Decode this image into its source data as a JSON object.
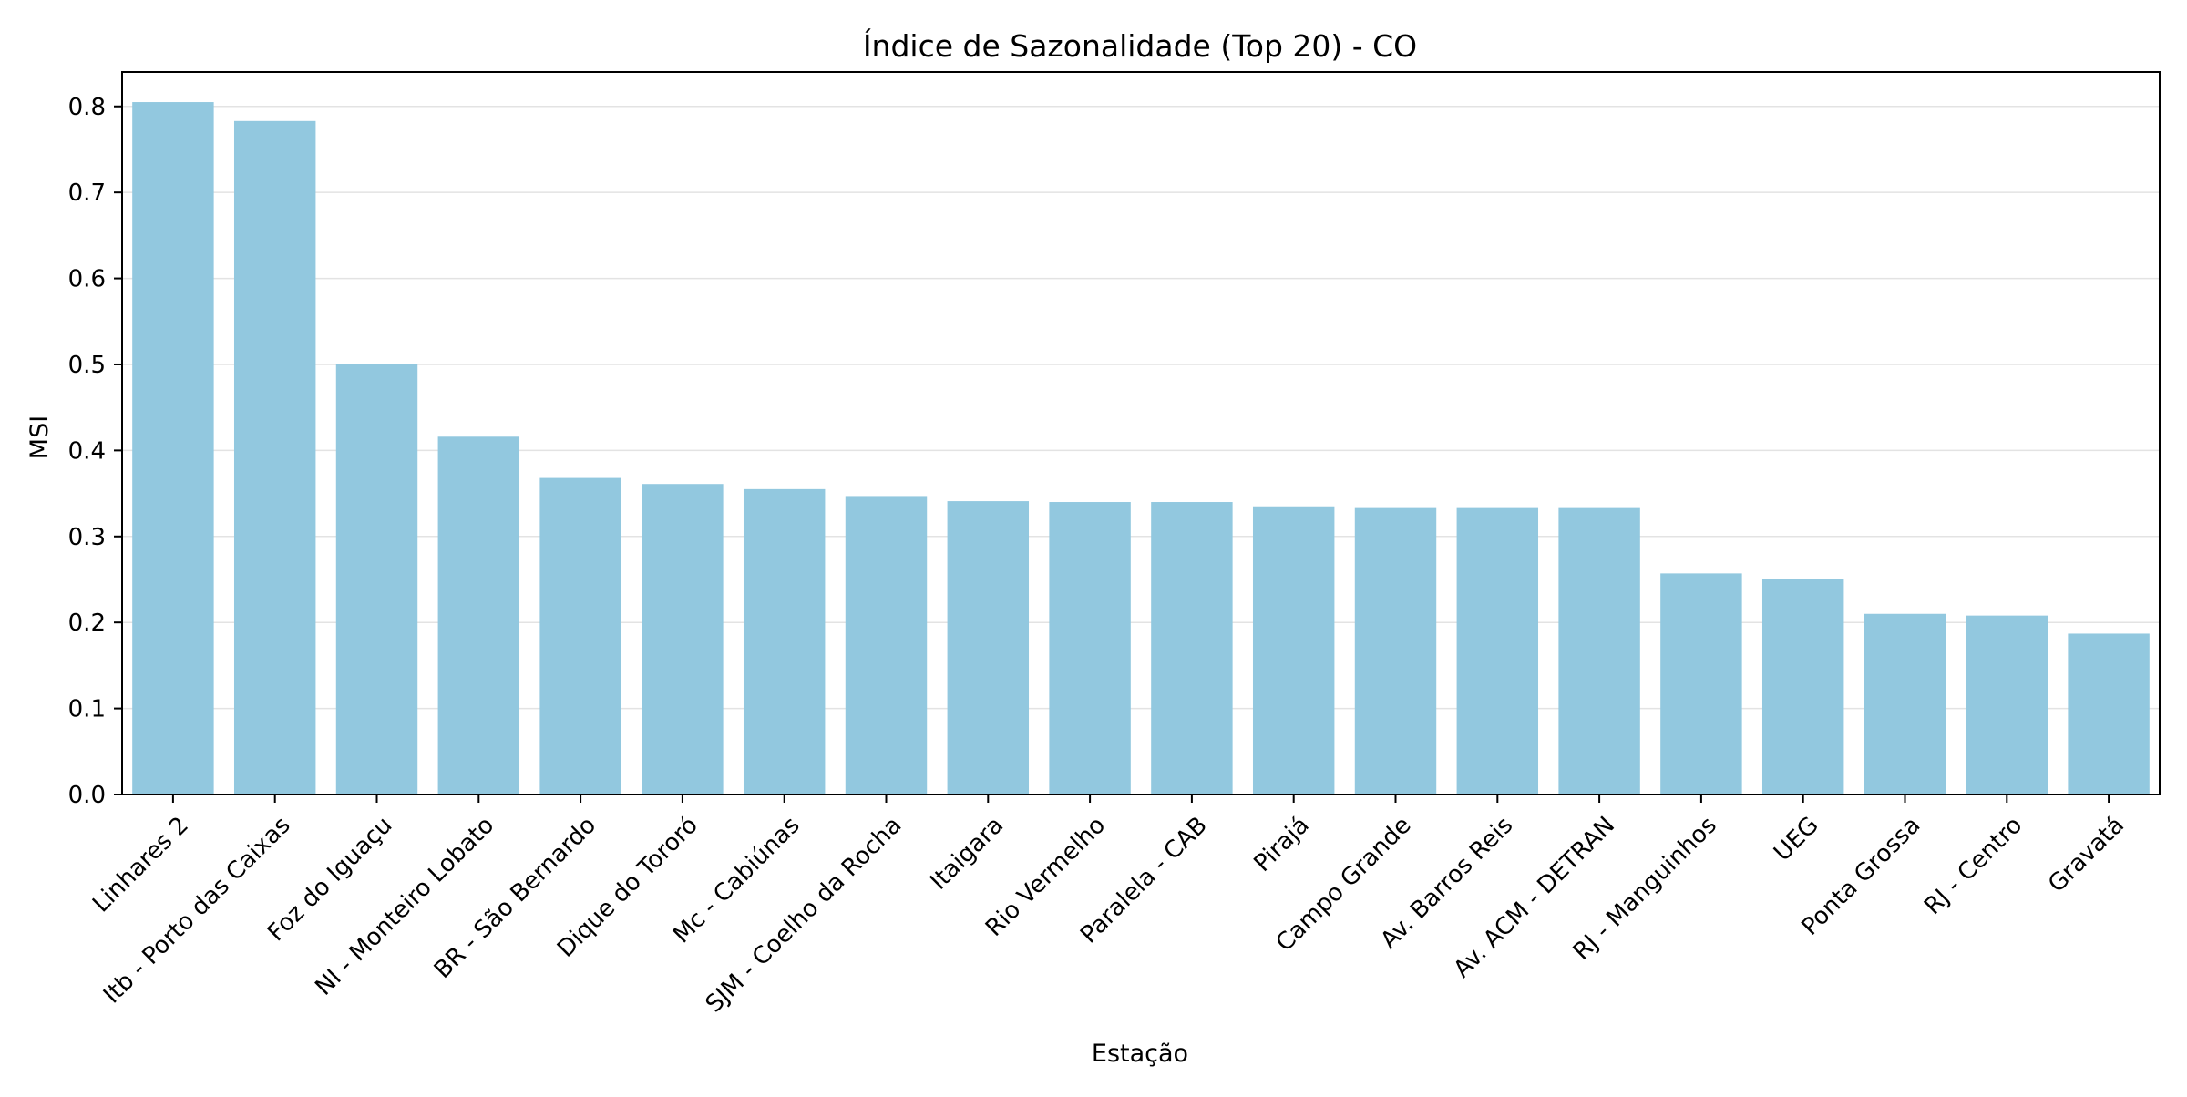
{
  "chart_data": {
    "type": "bar",
    "title": "Índice de Sazonalidade (Top 20) - CO",
    "xlabel": "Estação",
    "ylabel": "MSI",
    "ylim": [
      0,
      0.84
    ],
    "yticks": [
      "0.0",
      "0.1",
      "0.2",
      "0.3",
      "0.4",
      "0.5",
      "0.6",
      "0.7",
      "0.8"
    ],
    "grid": "horizontal",
    "bar_color": "#92c8df",
    "categories": [
      "Linhares 2",
      "Itb - Porto das Caixas",
      "Foz do Iguaçu",
      "NI - Monteiro Lobato",
      "BR - São Bernardo",
      "Dique do Tororó",
      "Mc - Cabiúnas",
      "SJM - Coelho da Rocha",
      "Itaigara",
      "Rio Vermelho",
      "Paralela - CAB",
      "Pirajá",
      "Campo Grande",
      "Av. Barros Reis",
      "Av. ACM - DETRAN",
      "RJ - Manguinhos",
      "UEG",
      "Ponta Grossa",
      "RJ - Centro",
      "Gravatá"
    ],
    "values": [
      0.805,
      0.783,
      0.5,
      0.416,
      0.368,
      0.361,
      0.355,
      0.347,
      0.341,
      0.34,
      0.34,
      0.335,
      0.333,
      0.333,
      0.333,
      0.257,
      0.25,
      0.21,
      0.208,
      0.187
    ]
  }
}
